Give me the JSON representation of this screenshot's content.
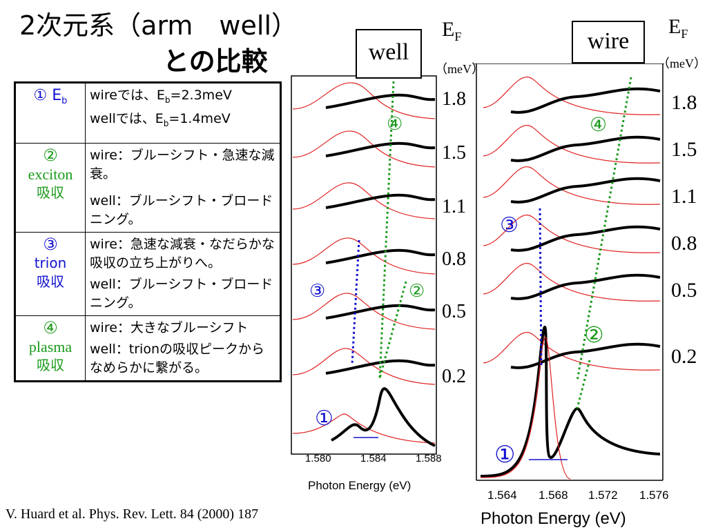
{
  "title_line1": "2次元系（arm　well）",
  "title_line2": "との比較",
  "table": {
    "rows": [
      {
        "marker": "① E",
        "marker_sub": "b",
        "lines": [
          "wireでは、E|b|=2.3meV",
          "wellでは、E|b|=1.4meV"
        ]
      },
      {
        "marker": "②",
        "name": "exciton",
        "kind": "吸収",
        "lines": [
          "wire：ブルーシフト・急速な減衰。",
          "well：ブルーシフト・ブロードニング。"
        ]
      },
      {
        "marker": "③",
        "name": "trion",
        "kind": "吸収",
        "lines": [
          "wire：急速な減衰・なだらかな吸収の立ち上がりへ。",
          "well：ブルーシフト・ブロードニング。"
        ]
      },
      {
        "marker": "④",
        "name": "plasma",
        "kind": "吸収",
        "lines": [
          "wire：大きなブルーシフト",
          "well：trionの吸収ピークからなめらかに繋がる。"
        ]
      }
    ],
    "row1_line1_pre": "wireでは、E",
    "row1_line1_sub": "b",
    "row1_line1_post": "=2.3meV",
    "row1_line2_pre": "wellでは、E",
    "row1_line2_sub": "b",
    "row1_line2_post": "=1.4meV"
  },
  "well_panel": {
    "label": "well",
    "ef_label": "E",
    "ef_sub": "F",
    "unit": "（meV）",
    "ef_values": [
      "1.8",
      "1.5",
      "1.1",
      "0.8",
      "0.5",
      "0.2"
    ],
    "x_ticks": [
      "1.580",
      "1.584",
      "1.588"
    ],
    "x_title": "Photon Energy (eV)",
    "markers": [
      "①",
      "②",
      "③",
      "④"
    ]
  },
  "wire_panel": {
    "label": "wire",
    "ef_label": "E",
    "ef_sub": "F",
    "unit": "（meV）",
    "ef_values": [
      "1.8",
      "1.5",
      "1.1",
      "0.8",
      "0.5",
      "0.2"
    ],
    "x_ticks": [
      "1.564",
      "1.568",
      "1.572",
      "1.576"
    ],
    "x_title": "Photon Energy (eV)",
    "markers": [
      "①",
      "②",
      "③",
      "④"
    ]
  },
  "citation": "V. Huard et al. Phys. Rev. Lett. 84 (2000) 187",
  "colors": {
    "blue": "#1010d0",
    "green": "#1a9a1a",
    "red": "#e02020"
  }
}
